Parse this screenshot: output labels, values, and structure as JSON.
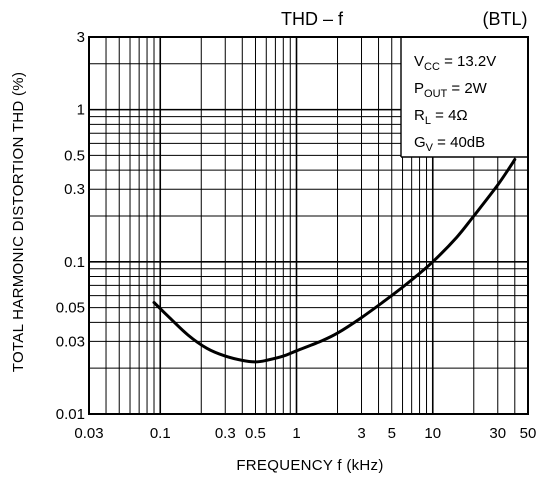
{
  "chart_data": {
    "type": "line",
    "title": "THD  – f",
    "mode_label": "(BTL)",
    "xlabel": "FREQUENCY   f   (kHz)",
    "ylabel": "TOTAL HARMONIC DISTORTION   THD   (%)",
    "x_scale": "log",
    "y_scale": "log",
    "xlim": [
      0.03,
      50
    ],
    "ylim": [
      0.01,
      3
    ],
    "grid": true,
    "x_ticks": [
      {
        "value": 0.03,
        "label": "0.03"
      },
      {
        "value": 0.1,
        "label": "0.1"
      },
      {
        "value": 0.3,
        "label": "0.3"
      },
      {
        "value": 0.5,
        "label": "0.5"
      },
      {
        "value": 1,
        "label": "1"
      },
      {
        "value": 3,
        "label": "3"
      },
      {
        "value": 5,
        "label": "5"
      },
      {
        "value": 10,
        "label": "10"
      },
      {
        "value": 30,
        "label": "30"
      },
      {
        "value": 50,
        "label": "50"
      }
    ],
    "y_ticks": [
      {
        "value": 0.01,
        "label": "0.01"
      },
      {
        "value": 0.03,
        "label": "0.03"
      },
      {
        "value": 0.05,
        "label": "0.05"
      },
      {
        "value": 0.1,
        "label": "0.1"
      },
      {
        "value": 0.3,
        "label": "0.3"
      },
      {
        "value": 0.5,
        "label": "0.5"
      },
      {
        "value": 1,
        "label": "1"
      },
      {
        "value": 3,
        "label": "3"
      }
    ],
    "conditions": [
      {
        "main": "V",
        "sub": "CC",
        "rest": " = 13.2V"
      },
      {
        "main": "P",
        "sub": "OUT",
        "rest": " = 2W"
      },
      {
        "main": "R",
        "sub": "L",
        "rest": " = 4Ω"
      },
      {
        "main": "G",
        "sub": "V",
        "rest": " = 40dB"
      }
    ],
    "legend_placement": "top-right",
    "series": [
      {
        "x": [
          0.09,
          0.12,
          0.16,
          0.22,
          0.3,
          0.4,
          0.5,
          0.6,
          0.8,
          1.0,
          1.5,
          2.0,
          3.0,
          5.0,
          7.0,
          10.0,
          15.0,
          20.0,
          30.0,
          40.0
        ],
        "values": [
          0.054,
          0.042,
          0.033,
          0.027,
          0.024,
          0.0225,
          0.022,
          0.0225,
          0.024,
          0.026,
          0.03,
          0.034,
          0.043,
          0.06,
          0.076,
          0.1,
          0.145,
          0.2,
          0.32,
          0.47
        ]
      }
    ]
  }
}
